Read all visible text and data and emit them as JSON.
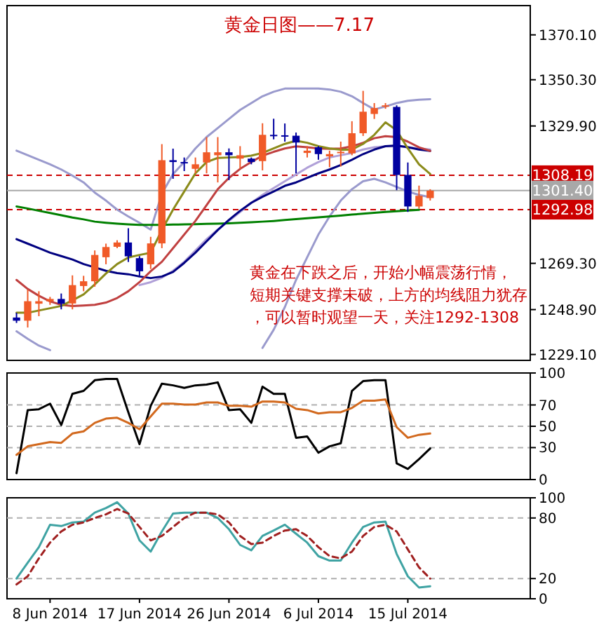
{
  "chart_data": [
    {
      "type": "candlestick",
      "title": "黄金日图——7.17",
      "categories": [
        null,
        null,
        null,
        null,
        null,
        null,
        null,
        null,
        null,
        null,
        null,
        null,
        null,
        null,
        null,
        null,
        null,
        null,
        null,
        null,
        null,
        null,
        null,
        null,
        null,
        null,
        null,
        null,
        null,
        null,
        null,
        null,
        null,
        null,
        null,
        null,
        null,
        null
      ],
      "ohlc": [
        [
          1245.4,
          1247.5,
          1243,
          1244
        ],
        [
          1244,
          1257.7,
          1241,
          1252.6
        ],
        [
          1251.5,
          1257,
          1246,
          1252.6
        ],
        [
          1252.5,
          1254.5,
          1251,
          1253.6
        ],
        [
          1253.6,
          1256,
          1249,
          1251.5
        ],
        [
          1251.6,
          1264,
          1249,
          1259.7
        ],
        [
          1259.3,
          1263.8,
          1257,
          1261.4
        ],
        [
          1261.4,
          1275,
          1259,
          1273
        ],
        [
          1272,
          1278,
          1268.9,
          1276.5
        ],
        [
          1276.6,
          1279.5,
          1276,
          1278.5
        ],
        [
          1278.5,
          1284.8,
          1269.9,
          1272.4
        ],
        [
          1271.6,
          1272.5,
          1263.8,
          1265.8
        ],
        [
          1268.9,
          1281,
          1266.8,
          1278.1
        ],
        [
          1278.1,
          1321.9,
          1276,
          1314.8
        ],
        [
          1314.8,
          1319.9,
          1306.6,
          1314
        ],
        [
          1314,
          1316,
          1310,
          1313.5
        ],
        [
          1311,
          1316,
          1309,
          1313
        ],
        [
          1313.8,
          1325,
          1309,
          1318.3
        ],
        [
          1317,
          1325,
          1305,
          1318.3
        ],
        [
          1318.3,
          1320,
          1306,
          1317
        ],
        [
          1315.5,
          1321,
          1311,
          1317
        ],
        [
          1315.5,
          1316,
          1313,
          1314
        ],
        [
          1314.4,
          1331.1,
          1310.3,
          1326
        ],
        [
          1326,
          1333.1,
          1324,
          1325.8
        ],
        [
          1325.8,
          1331,
          1323,
          1325.5
        ],
        [
          1325.6,
          1327,
          1309,
          1322.6
        ],
        [
          1318,
          1321,
          1316,
          1319
        ],
        [
          1320.5,
          1321,
          1315,
          1317.5
        ],
        [
          1316.5,
          1319,
          1311.7,
          1317.5
        ],
        [
          1318,
          1323,
          1312,
          1318.5
        ],
        [
          1317.8,
          1332,
          1317,
          1326.7
        ],
        [
          1326.7,
          1345.4,
          1325.5,
          1336.2
        ],
        [
          1335.2,
          1340,
          1333,
          1337.8
        ],
        [
          1338.5,
          1340,
          1337.5,
          1339
        ],
        [
          1338.3,
          1339,
          1301.6,
          1308.3
        ],
        [
          1308.3,
          1313.8,
          1292,
          1294.4
        ],
        [
          1294.4,
          1303.6,
          1293.4,
          1299.1
        ],
        [
          1298.1,
          1302,
          1297,
          1301.4
        ]
      ],
      "colors": [
        "#0000a0",
        "#f05a28",
        "#f05a28",
        "#f05a28",
        "#0000a0",
        "#f05a28",
        "#f05a28",
        "#f05a28",
        "#f05a28",
        "#f05a28",
        "#0000a0",
        "#0000a0",
        "#f05a28",
        "#f05a28",
        "#0000a0",
        "#0000a0",
        "#f05a28",
        "#f05a28",
        "#f05a28",
        "#0000a0",
        "#f05a28",
        "#0000a0",
        "#f05a28",
        "#0000a0",
        "#0000a0",
        "#0000a0",
        "#f05a28",
        "#0000a0",
        "#f05a28",
        "#f05a28",
        "#f05a28",
        "#f05a28",
        "#f05a28",
        "#f05a28",
        "#0000a0",
        "#0000a0",
        "#f05a28",
        "#f05a28"
      ],
      "series": [
        {
          "type": "line",
          "color": "#9a9acd",
          "values": [
            1319,
            1317,
            1315,
            1313,
            1310.7,
            1308,
            1305,
            1300.5,
            1297,
            1293,
            1290,
            1287.2,
            1284.2,
            1300,
            1308.7,
            1314,
            1320,
            1325,
            1329,
            1333,
            1337,
            1340,
            1343,
            1345,
            1346.4,
            1346.4,
            1346.4,
            1346.4,
            1346,
            1345,
            1343,
            1340,
            1337.2,
            1338.5,
            1340,
            1341,
            1341.5,
            1341.7
          ]
        },
        {
          "type": "line",
          "color": "#9a9acd",
          "values": [
            1239.3,
            1236,
            1233,
            1231,
            null,
            null,
            null,
            null,
            null,
            null,
            null,
            null,
            null,
            null,
            null,
            null,
            null,
            null,
            null,
            null,
            null,
            null,
            1232,
            1240,
            1250,
            1262,
            1272,
            1282,
            1290,
            1297,
            1302,
            1305.5,
            1306.6,
            1305,
            1303,
            1301,
            1299.5,
            1298.5
          ]
        },
        {
          "type": "line",
          "color": "#b0a0d8",
          "values": [
            null,
            null,
            null,
            null,
            null,
            null,
            null,
            null,
            null,
            null,
            null,
            1259.7,
            1261,
            1263,
            1266,
            1270,
            1275,
            1280,
            1284.2,
            1288,
            1292,
            1296,
            1299.5,
            1302.5,
            1305.5,
            1308.5,
            1311.5,
            1314,
            1316,
            1317,
            1318,
            1319.5,
            1320.5,
            1320.9,
            1321,
            1320.5,
            1320,
            1319.5
          ]
        },
        {
          "type": "line",
          "color": "#008000",
          "values": [
            1294.4,
            1293.5,
            1292.5,
            1291.5,
            1290.5,
            1289.5,
            1288.7,
            1287.7,
            1287.2,
            1286.8,
            1286.5,
            1286.3,
            1286.3,
            1286.3,
            1286.4,
            1286.5,
            1286.6,
            1286.7,
            1286.8,
            1287,
            1287.2,
            1287.4,
            1287.7,
            1288,
            1288.4,
            1288.8,
            1289.2,
            1289.6,
            1290,
            1290.4,
            1290.8,
            1291.2,
            1291.6,
            1292,
            1292.3,
            1292.6,
            1292.9,
            null
          ]
        },
        {
          "type": "line",
          "color": "#000080",
          "values": [
            1280,
            1278,
            1276,
            1274,
            1272.5,
            1271,
            1269,
            1267.5,
            1266,
            1265,
            1264.5,
            1263.5,
            1262.8,
            1263.5,
            1265.5,
            1269.5,
            1274,
            1279,
            1284,
            1288.5,
            1292.5,
            1296,
            1298.7,
            1301,
            1303.5,
            1305,
            1307,
            1309,
            1310.7,
            1312.7,
            1315,
            1317.5,
            1319.5,
            1321,
            1321.3,
            1320.5,
            1319.5,
            1318.9
          ]
        },
        {
          "type": "line",
          "color": "#c04040",
          "values": [
            1262,
            1258,
            1255,
            1252.5,
            1251,
            1250.5,
            1250.7,
            1251,
            1252,
            1254,
            1257,
            1261,
            1265.8,
            1270,
            1276,
            1282,
            1288,
            1295,
            1302,
            1307,
            1311,
            1314,
            1316.8,
            1318.5,
            1320,
            1320.9,
            1320.5,
            1320,
            1319.8,
            1320,
            1320.9,
            1322.5,
            1324.5,
            1325.4,
            1325,
            1323,
            1320.5,
            1318.9
          ]
        },
        {
          "type": "line",
          "color": "#8b8b1a",
          "values": [
            1247.5,
            1247.5,
            1248.5,
            1249.5,
            1250.5,
            1253,
            1255.6,
            1260,
            1264.8,
            1269,
            1271.9,
            1273,
            1274,
            1284,
            1293,
            1301,
            1309,
            1314,
            1315.8,
            1316,
            1316.2,
            1316.8,
            1318,
            1320,
            1322,
            1323.4,
            1322.5,
            1321,
            1320,
            1319.4,
            1319.5,
            1322,
            1326,
            1331.5,
            1328,
            1320,
            1313,
            1308.7
          ]
        }
      ],
      "ylim": [
        1226.5,
        1383
      ],
      "yticks": [
        {
          "value": 1229.1,
          "label": "1229.10"
        },
        {
          "value": 1248.9,
          "label": "1248.90"
        },
        {
          "value": 1269.3,
          "label": "1269.30"
        },
        {
          "value": 1329.9,
          "label": "1329.90"
        },
        {
          "value": 1350.3,
          "label": "1350.30"
        },
        {
          "value": 1370.1,
          "label": "1370.10"
        }
      ],
      "ref_lines": [
        {
          "axis": "y",
          "value": 1308.19,
          "label": "1308.19",
          "color": "#cc0000",
          "line_style": "dashed"
        },
        {
          "axis": "y",
          "value": 1301.4,
          "label": "1301.40",
          "color": "#a8a8a8",
          "line_style": "solid"
        },
        {
          "axis": "y",
          "value": 1292.98,
          "label": "1292.98",
          "color": "#cc0000",
          "line_style": "dashed"
        }
      ],
      "annotations": [
        "黄金在下跌之后，开始小幅震荡行情，",
        "短期关键支撑未破，上方的均线阻力犹存",
        "，可以暂时观望一天，关注1292-1308"
      ],
      "tick_labels": "y"
    },
    {
      "type": "line",
      "categories": [
        null,
        null,
        null,
        null,
        null,
        null,
        null,
        null,
        null,
        null,
        null,
        null,
        null,
        null,
        null,
        null,
        null,
        null,
        null,
        null,
        null,
        null,
        null,
        null,
        null,
        null,
        null,
        null,
        null,
        null,
        null,
        null,
        null,
        null,
        null,
        null,
        null,
        null
      ],
      "series": [
        {
          "color": "#000000",
          "values": [
            6,
            65.2,
            66,
            71.2,
            51.2,
            80.4,
            83.2,
            93.2,
            94.4,
            94.4,
            63.2,
            33.2,
            69.2,
            90,
            88.4,
            86,
            88.4,
            89.2,
            91.2,
            65.2,
            66,
            53.2,
            87.2,
            80.4,
            80.4,
            39.2,
            40.4,
            25.2,
            31.2,
            34,
            83.2,
            92.4,
            93.2,
            93.2,
            15.2,
            10,
            19.2,
            29.2
          ]
        },
        {
          "color": "#d2691e",
          "values": [
            23.2,
            31.2,
            33.2,
            35.2,
            34.4,
            43.2,
            45.2,
            53.2,
            57.2,
            58,
            53.2,
            47.2,
            59.2,
            71.2,
            71.2,
            70.4,
            70.4,
            72.4,
            72.4,
            69.2,
            69.2,
            68.4,
            73.2,
            73.2,
            72.4,
            66.4,
            65.2,
            62,
            63.2,
            63.2,
            67.2,
            74,
            74,
            75.2,
            49.2,
            39.2,
            42,
            43.2
          ]
        }
      ],
      "ylim": [
        0,
        100
      ],
      "yticks": [
        0,
        30,
        50,
        70,
        100
      ],
      "ref_lines": [
        {
          "axis": "y",
          "value": 30,
          "color": "#b0b0b0",
          "line_style": "dashed"
        },
        {
          "axis": "y",
          "value": 50,
          "color": "#b0b0b0",
          "line_style": "dashed"
        },
        {
          "axis": "y",
          "value": 70,
          "color": "#b0b0b0",
          "line_style": "dashed"
        }
      ],
      "tick_labels": "y"
    },
    {
      "type": "line",
      "categories": [
        null,
        null,
        null,
        "8 Jun 2014",
        null,
        null,
        null,
        null,
        null,
        null,
        null,
        "17 Jun 2014",
        null,
        null,
        null,
        null,
        null,
        null,
        null,
        "26 Jun 2014",
        null,
        null,
        null,
        null,
        null,
        null,
        null,
        "6 Jul 2014",
        null,
        null,
        null,
        null,
        null,
        null,
        null,
        "15 Jul 2014",
        null,
        null
      ],
      "series": [
        {
          "color": "#3fa3a3",
          "values": [
            20,
            35.6,
            51.1,
            73.3,
            72,
            75.6,
            76.4,
            85.3,
            89.8,
            95.6,
            84.4,
            57.8,
            46.7,
            66.7,
            84.4,
            85.3,
            85.3,
            85.3,
            80,
            68.9,
            53.3,
            48,
            62.2,
            67.6,
            73.3,
            64.4,
            55.6,
            42.2,
            37.8,
            37.8,
            55.6,
            71.1,
            75.6,
            76.4,
            44.4,
            22.2,
            11.1,
            12.4
          ]
        },
        {
          "color": "#a02020",
          "line_style": "dashed",
          "values": [
            14.2,
            22.2,
            40,
            55.6,
            66.7,
            73.3,
            75.6,
            80,
            83.6,
            88.9,
            84.4,
            71.1,
            57.8,
            62.2,
            71.1,
            80,
            85.3,
            85.3,
            83.6,
            75.6,
            62.2,
            54.2,
            55.6,
            62.2,
            67.6,
            68.9,
            62.2,
            51.1,
            42.2,
            40,
            46.7,
            62.2,
            71.1,
            73.3,
            66.7,
            48.9,
            31.1,
            20
          ]
        }
      ],
      "ylim": [
        0,
        100
      ],
      "yticks": [
        0,
        20,
        80,
        100
      ],
      "ref_lines": [
        {
          "axis": "y",
          "value": 20,
          "color": "#b0b0b0",
          "line_style": "dashed"
        },
        {
          "axis": "y",
          "value": 80,
          "color": "#b0b0b0",
          "line_style": "dashed"
        }
      ]
    }
  ]
}
